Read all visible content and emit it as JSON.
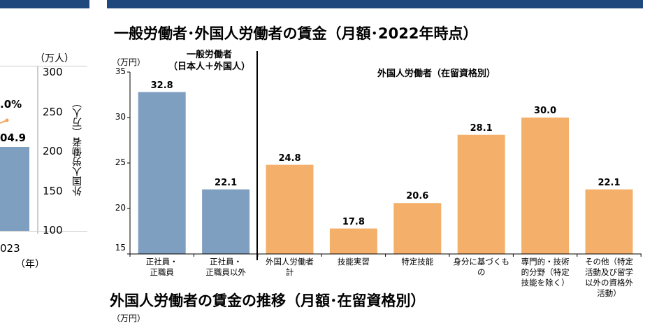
{
  "colors": {
    "header_band": "#1f497d",
    "general": "#7f9fc1",
    "foreign": "#f4b06b",
    "line": "#f4a460"
  },
  "left_chart": {
    "unit": "（万人）",
    "yaxis_label": "外国人労働者（万人）",
    "ticks": [
      "300",
      "250",
      "200",
      "150",
      "100"
    ],
    "bar_label": "04.9",
    "line_label": ".0%",
    "x_tick": "023",
    "x_unit": "（年）"
  },
  "chart_data": {
    "type": "bar",
    "title": "一般労働者･外国人労働者の賃金（月額･2022年時点）",
    "ylabel": "（万円）",
    "ylim": [
      15,
      35
    ],
    "yticks": [
      "35",
      "30",
      "25",
      "20",
      "15"
    ],
    "groups": [
      {
        "label": "一般労働者\n（日本人＋外国人）",
        "color": "general"
      },
      {
        "label": "外国人労働者（在留資格別）",
        "color": "foreign"
      }
    ],
    "categories": [
      "正社員・\n正職員",
      "正社員・\n正職員以外",
      "外国人労働者\n計",
      "技能実習",
      "特定技能",
      "身分に基づくも\nの",
      "専門的・技術\n的分野（特定\n技能を除く）",
      "その他（特定\n活動及び留学\n以外の資格外\n活動）"
    ],
    "values": [
      32.8,
      22.1,
      24.8,
      17.8,
      20.6,
      28.1,
      30.0,
      22.1
    ],
    "value_labels": [
      "32.8",
      "22.1",
      "24.8",
      "17.8",
      "20.6",
      "28.1",
      "30.0",
      "22.1"
    ],
    "group_of": [
      0,
      0,
      1,
      1,
      1,
      1,
      1,
      1
    ]
  },
  "next_section": {
    "title": "外国人労働者の賃金の推移（月額･在留資格別）",
    "unit": "（万円）"
  }
}
